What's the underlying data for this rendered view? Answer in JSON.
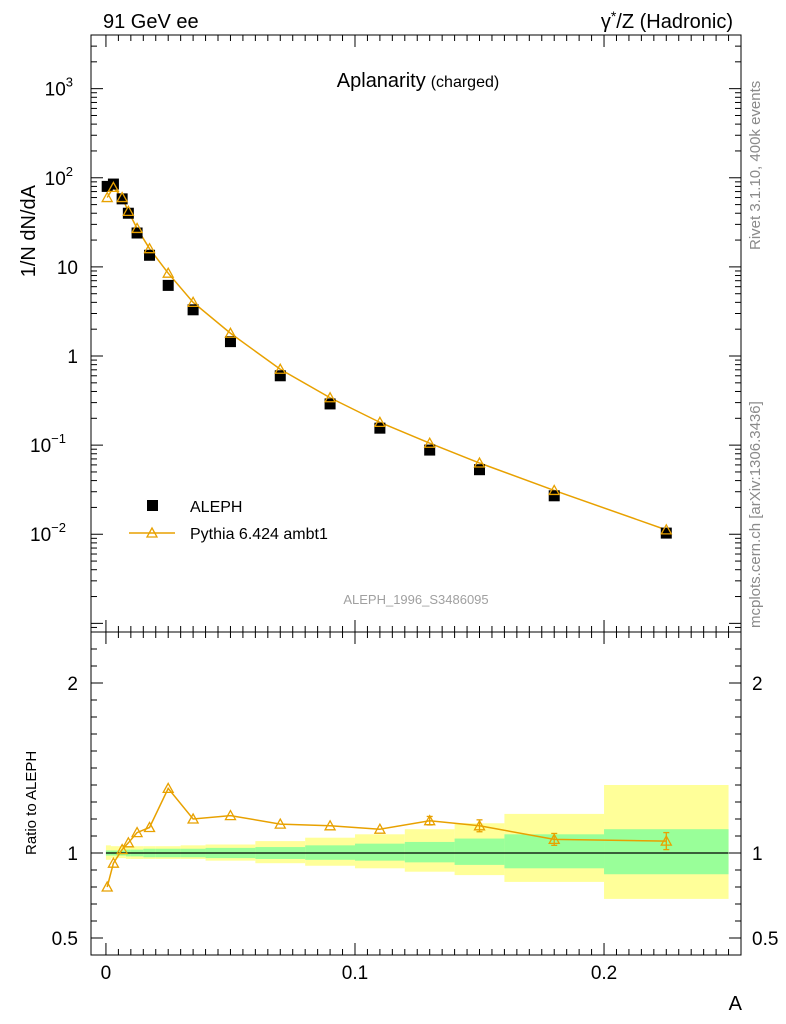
{
  "header": {
    "left": "91 GeV ee",
    "right_prefix": "γ",
    "right_sup": "*",
    "right_rest": "/Z (Hadronic)"
  },
  "side": {
    "top": "Rivet 3.1.10,  400k events",
    "bottom": "mcplots.cern.ch [arXiv:1306.3436]"
  },
  "analysis_tag": "ALEPH_1996_S3486095",
  "colors": {
    "mc": "#e8a100",
    "data": "#000000",
    "band_inner": "#99ff99",
    "band_outer": "#ffff99"
  },
  "chart_data": [
    {
      "type": "scatter",
      "title": "Aplanarity",
      "subtitle": "(charged)",
      "ylabel": "1/N dN/dA",
      "yscale": "log",
      "ylim": [
        0.0008,
        4000
      ],
      "xlim": [
        -0.006,
        0.255
      ],
      "yticks": [
        {
          "v": 0.01,
          "base": "10",
          "exp": "−2"
        },
        {
          "v": 0.1,
          "base": "10",
          "exp": "−1"
        },
        {
          "v": 1,
          "base": "1",
          "exp": ""
        },
        {
          "v": 10,
          "base": "10",
          "exp": ""
        },
        {
          "v": 100,
          "base": "10",
          "exp": "2"
        },
        {
          "v": 1000,
          "base": "10",
          "exp": "3"
        }
      ],
      "legend_position": "bottom-left",
      "series": [
        {
          "name": "ALEPH",
          "marker": "filled-square",
          "x": [
            0.0005,
            0.003,
            0.0065,
            0.009,
            0.0125,
            0.0175,
            0.025,
            0.035,
            0.05,
            0.07,
            0.09,
            0.11,
            0.13,
            0.15,
            0.18,
            0.225
          ],
          "y": [
            80,
            85,
            58,
            40,
            24,
            13.5,
            6.2,
            3.3,
            1.45,
            0.6,
            0.29,
            0.155,
            0.088,
            0.053,
            0.027,
            0.0103
          ]
        },
        {
          "name": "Pythia 6.424 ambt1",
          "marker": "open-triangle",
          "x": [
            0.0005,
            0.003,
            0.0065,
            0.009,
            0.0125,
            0.0175,
            0.025,
            0.035,
            0.05,
            0.07,
            0.09,
            0.11,
            0.13,
            0.15,
            0.18,
            0.225
          ],
          "y": [
            60,
            78,
            60,
            42,
            27,
            16,
            8.5,
            4.0,
            1.8,
            0.71,
            0.34,
            0.18,
            0.105,
            0.063,
            0.031,
            0.0112
          ]
        }
      ]
    },
    {
      "type": "line",
      "ylabel": "Ratio to ALEPH",
      "xlabel": "A",
      "ylim": [
        0.4,
        2.3
      ],
      "xlim": [
        -0.006,
        0.255
      ],
      "yticks": [
        0.5,
        1,
        2
      ],
      "ytick_labels": [
        "0.5",
        "1",
        "2"
      ],
      "xticks": [
        0,
        0.1,
        0.2
      ],
      "xtick_labels": [
        "0",
        "0.1",
        "0.2"
      ],
      "reference_line": 1,
      "bands": {
        "edges": [
          0,
          0.002,
          0.005,
          0.008,
          0.01,
          0.015,
          0.02,
          0.03,
          0.04,
          0.06,
          0.08,
          0.1,
          0.12,
          0.14,
          0.16,
          0.2,
          0.25
        ],
        "inner_lo": [
          0.985,
          0.985,
          0.985,
          0.98,
          0.98,
          0.975,
          0.975,
          0.975,
          0.97,
          0.965,
          0.96,
          0.955,
          0.945,
          0.93,
          0.91,
          0.875
        ],
        "inner_hi": [
          1.015,
          1.015,
          1.015,
          1.02,
          1.02,
          1.025,
          1.025,
          1.025,
          1.03,
          1.035,
          1.045,
          1.055,
          1.065,
          1.085,
          1.11,
          1.14
        ],
        "outer_lo": [
          0.96,
          0.97,
          0.97,
          0.965,
          0.965,
          0.965,
          0.965,
          0.965,
          0.955,
          0.94,
          0.925,
          0.91,
          0.89,
          0.87,
          0.83,
          0.73
        ],
        "outer_hi": [
          1.045,
          1.04,
          1.04,
          1.04,
          1.04,
          1.04,
          1.04,
          1.045,
          1.05,
          1.07,
          1.09,
          1.11,
          1.14,
          1.175,
          1.23,
          1.4
        ]
      },
      "series": [
        {
          "name": "Pythia 6.424 ambt1",
          "x": [
            0.0005,
            0.003,
            0.0065,
            0.009,
            0.0125,
            0.0175,
            0.025,
            0.035,
            0.05,
            0.07,
            0.09,
            0.11,
            0.13,
            0.15,
            0.18,
            0.225
          ],
          "y": [
            0.8,
            0.94,
            1.02,
            1.06,
            1.12,
            1.15,
            1.38,
            1.2,
            1.22,
            1.17,
            1.16,
            1.14,
            1.19,
            1.16,
            1.08,
            1.07
          ],
          "err": [
            0,
            0,
            0,
            0,
            0,
            0,
            0,
            0,
            0,
            0,
            0,
            0,
            0.025,
            0.035,
            0.035,
            0.05
          ]
        }
      ]
    }
  ]
}
